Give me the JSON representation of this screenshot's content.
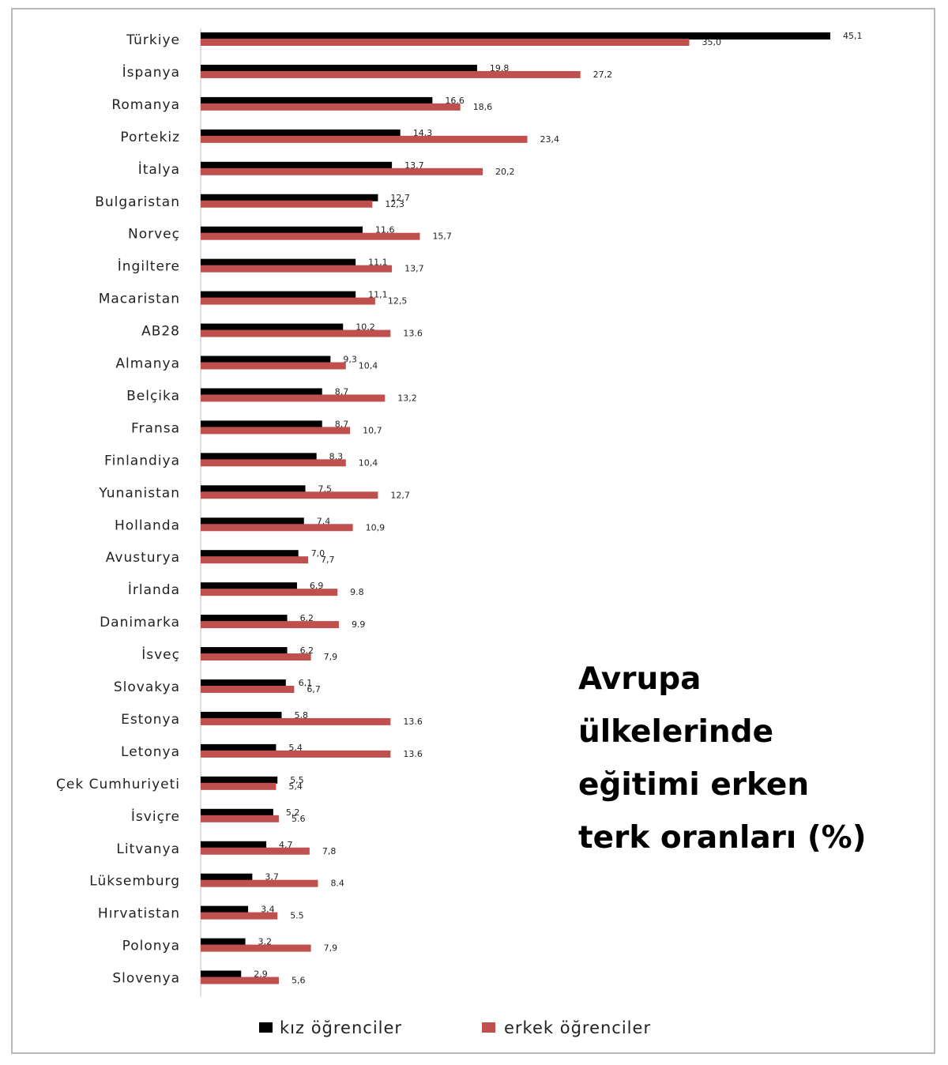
{
  "chart_data": {
    "type": "bar",
    "orientation": "horizontal",
    "title_lines": [
      "Avrupa",
      "ülkelerinde",
      "eğitimi erken",
      "terk oranları (%)"
    ],
    "categories": [
      "Türkiye",
      "İspanya",
      "Romanya",
      "Portekiz",
      "İtalya",
      "Bulgaristan",
      "Norveç",
      "İngiltere",
      "Macaristan",
      "AB28",
      "Almanya",
      "Belçika",
      "Fransa",
      "Finlandiya",
      "Yunanistan",
      "Hollanda",
      "Avusturya",
      "İrlanda",
      "Danimarka",
      "İsveç",
      "Slovakya",
      "Estonya",
      "Letonya",
      "Çek Cumhuriyeti",
      "İsviçre",
      "Litvanya",
      "Lüksemburg",
      "Hırvatistan",
      "Polonya",
      "Slovenya"
    ],
    "series": [
      {
        "name": "kız öğrenciler",
        "color": "#000000",
        "values": [
          45.1,
          19.8,
          16.6,
          14.3,
          13.7,
          12.7,
          11.6,
          11.1,
          11.1,
          10.2,
          9.3,
          8.7,
          8.7,
          8.3,
          7.5,
          7.4,
          7.0,
          6.9,
          6.2,
          6.2,
          6.1,
          5.8,
          5.4,
          5.5,
          5.2,
          4.7,
          3.7,
          3.4,
          3.2,
          2.9
        ],
        "labels": [
          "45,1",
          "19,8",
          "16,6",
          "14,3",
          "13,7",
          "12,7",
          "11,6",
          "11,1",
          "11,1",
          "10,2",
          "9,3",
          "8,7",
          "8,7",
          "8,3",
          "7,5",
          "7,4",
          "7,0",
          "6,9",
          "6,2",
          "6,2",
          "6,1",
          "5,8",
          "5,4",
          "5,5",
          "5,2",
          "4,7",
          "3,7",
          "3,4",
          "3,2",
          "2,9"
        ]
      },
      {
        "name": "erkek öğrenciler",
        "color": "#c0504d",
        "values": [
          35.0,
          27.2,
          18.6,
          23.4,
          20.2,
          12.3,
          15.7,
          13.7,
          12.5,
          13.6,
          10.4,
          13.2,
          10.7,
          10.4,
          12.7,
          10.9,
          7.7,
          9.8,
          9.9,
          7.9,
          6.7,
          13.6,
          13.6,
          5.4,
          5.6,
          7.8,
          8.4,
          5.5,
          7.9,
          5.6
        ],
        "labels": [
          "35,0",
          "27,2",
          "18,6",
          "23,4",
          "20,2",
          "12,3",
          "15,7",
          "13,7",
          "12,5",
          "13.6",
          "10,4",
          "13,2",
          "10,7",
          "10,4",
          "12,7",
          "10,9",
          "7,7",
          "9.8",
          "9.9",
          "7,9",
          "6,7",
          "13.6",
          "13.6",
          "5,4",
          "5.6",
          "7,8",
          "8.4",
          "5.5",
          "7,9",
          "5,6"
        ]
      }
    ],
    "xlim": [
      0,
      45.1
    ],
    "legend_position": "bottom",
    "grid": false
  }
}
